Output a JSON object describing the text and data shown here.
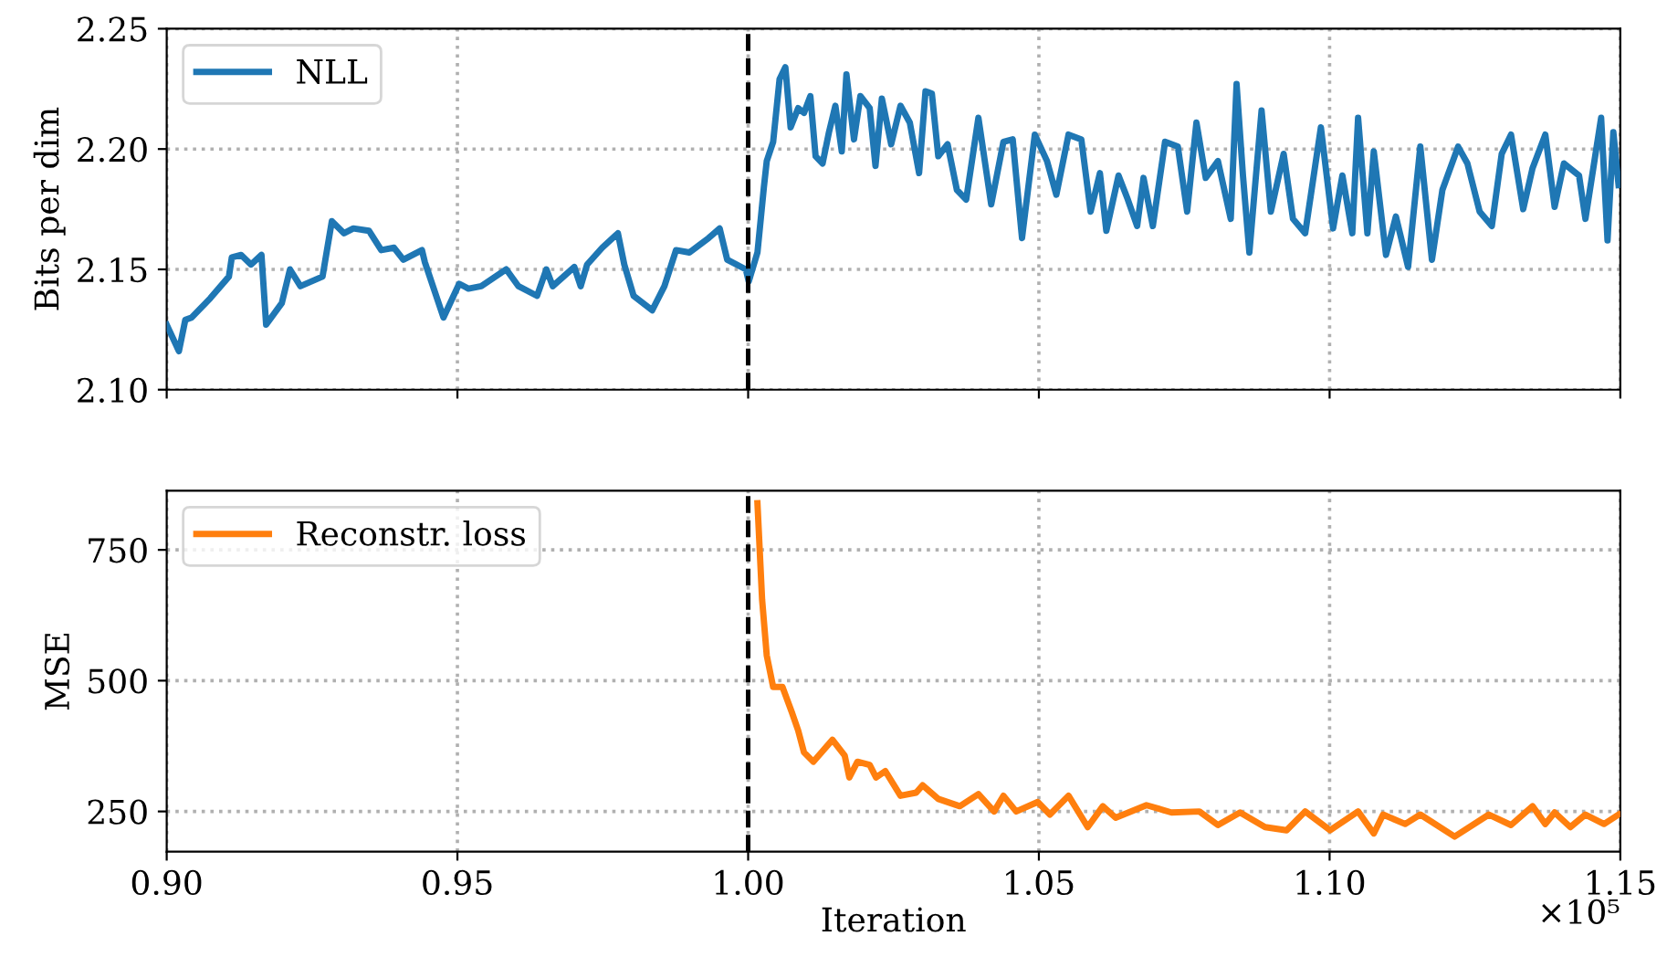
{
  "chart_data": [
    {
      "type": "line",
      "ylabel": "Bits per dim",
      "xlim": [
        0.9,
        1.15
      ],
      "ylim": [
        2.1,
        2.25
      ],
      "xticks": [
        {
          "value": 0.9,
          "label": null
        },
        {
          "value": 0.95,
          "label": null
        },
        {
          "value": 1.0,
          "label": null
        },
        {
          "value": 1.05,
          "label": null
        },
        {
          "value": 1.1,
          "label": null
        },
        {
          "value": 1.15,
          "label": null
        }
      ],
      "yticks": [
        {
          "value": 2.1,
          "label": "2.10"
        },
        {
          "value": 2.15,
          "label": "2.15"
        },
        {
          "value": 2.2,
          "label": "2.20"
        },
        {
          "value": 2.25,
          "label": "2.25"
        }
      ],
      "tick_labels": "y",
      "grid": true,
      "legend": "top left",
      "line_style": "solid",
      "marker": "none",
      "ref_lines": [
        {
          "axis": "x",
          "value": 1.0,
          "color": "#000000",
          "line_style": "dashed"
        }
      ],
      "series": [
        {
          "name": "NLL",
          "color": "#1f77b4",
          "x": [
            0.9,
            0.9021,
            0.9032,
            0.9043,
            0.9075,
            0.9107,
            0.9112,
            0.9128,
            0.9145,
            0.9163,
            0.9171,
            0.9198,
            0.9212,
            0.923,
            0.9268,
            0.9284,
            0.9305,
            0.9321,
            0.9348,
            0.9369,
            0.9391,
            0.9407,
            0.9439,
            0.9444,
            0.9476,
            0.9503,
            0.9519,
            0.9541,
            0.9584,
            0.9605,
            0.9637,
            0.9653,
            0.9664,
            0.9701,
            0.9712,
            0.9723,
            0.9749,
            0.9776,
            0.9787,
            0.9803,
            0.9835,
            0.9856,
            0.9876,
            0.9899,
            0.9932,
            0.9951,
            0.9964,
            0.9996,
            1.0001,
            1.0016,
            1.0027,
            1.0032,
            1.0043,
            1.0054,
            1.0064,
            1.0073,
            1.0086,
            1.0096,
            1.0107,
            1.0116,
            1.0128,
            1.0139,
            1.015,
            1.0161,
            1.0169,
            1.0182,
            1.0193,
            1.0209,
            1.0219,
            1.023,
            1.0246,
            1.0262,
            1.0278,
            1.0294,
            1.0305,
            1.0316,
            1.0327,
            1.0343,
            1.0359,
            1.0375,
            1.0396,
            1.0418,
            1.0439,
            1.0455,
            1.0471,
            1.0493,
            1.0514,
            1.053,
            1.0551,
            1.0573,
            1.0589,
            1.0605,
            1.0616,
            1.0637,
            1.0653,
            1.0669,
            1.068,
            1.0696,
            1.0717,
            1.0739,
            1.0755,
            1.0771,
            1.0787,
            1.0808,
            1.083,
            1.084,
            1.0851,
            1.0862,
            1.0883,
            1.0899,
            1.0921,
            1.0937,
            1.0958,
            1.0985,
            1.1006,
            1.1022,
            1.1039,
            1.1049,
            1.1065,
            1.1076,
            1.1097,
            1.1114,
            1.1135,
            1.1156,
            1.1176,
            1.1194,
            1.1221,
            1.1237,
            1.1258,
            1.1279,
            1.1296,
            1.1312,
            1.1333,
            1.1349,
            1.1371,
            1.1387,
            1.1403,
            1.1429,
            1.144,
            1.1467,
            1.1478,
            1.1488,
            1.1497
          ],
          "values": [
            2.127,
            2.116,
            2.129,
            2.13,
            2.138,
            2.147,
            2.155,
            2.156,
            2.152,
            2.156,
            2.127,
            2.136,
            2.15,
            2.143,
            2.147,
            2.17,
            2.165,
            2.167,
            2.166,
            2.158,
            2.159,
            2.154,
            2.158,
            2.153,
            2.13,
            2.144,
            2.142,
            2.143,
            2.15,
            2.143,
            2.139,
            2.15,
            2.143,
            2.151,
            2.143,
            2.152,
            2.159,
            2.165,
            2.152,
            2.139,
            2.133,
            2.143,
            2.158,
            2.157,
            2.163,
            2.167,
            2.154,
            2.15,
            2.145,
            2.157,
            2.184,
            2.195,
            2.203,
            2.229,
            2.234,
            2.209,
            2.217,
            2.215,
            2.222,
            2.197,
            2.194,
            2.207,
            2.218,
            2.199,
            2.231,
            2.204,
            2.222,
            2.217,
            2.193,
            2.221,
            2.202,
            2.218,
            2.211,
            2.19,
            2.224,
            2.223,
            2.197,
            2.202,
            2.183,
            2.179,
            2.213,
            2.177,
            2.203,
            2.204,
            2.163,
            2.206,
            2.195,
            2.181,
            2.206,
            2.204,
            2.174,
            2.19,
            2.166,
            2.189,
            2.179,
            2.168,
            2.188,
            2.168,
            2.203,
            2.201,
            2.174,
            2.211,
            2.188,
            2.195,
            2.171,
            2.227,
            2.189,
            2.157,
            2.216,
            2.174,
            2.198,
            2.171,
            2.165,
            2.209,
            2.167,
            2.189,
            2.165,
            2.213,
            2.165,
            2.199,
            2.156,
            2.172,
            2.151,
            2.201,
            2.154,
            2.183,
            2.201,
            2.194,
            2.174,
            2.168,
            2.198,
            2.206,
            2.175,
            2.192,
            2.206,
            2.176,
            2.194,
            2.189,
            2.171,
            2.213,
            2.162,
            2.207,
            2.185
          ]
        }
      ]
    },
    {
      "type": "line",
      "ylabel": "MSE",
      "xlabel": "Iteration",
      "xlim": [
        0.9,
        1.15
      ],
      "ylim": [
        173,
        863
      ],
      "xticks": [
        {
          "value": 0.9,
          "label": "0.90"
        },
        {
          "value": 0.95,
          "label": "0.95"
        },
        {
          "value": 1.0,
          "label": "1.00"
        },
        {
          "value": 1.05,
          "label": "1.05"
        },
        {
          "value": 1.1,
          "label": "1.10"
        },
        {
          "value": 1.15,
          "label": "1.15"
        }
      ],
      "yticks": [
        250,
        500,
        750
      ],
      "grid": true,
      "legend": "top left",
      "line_style": "solid",
      "marker": "none",
      "annotations": [
        "×10⁵"
      ],
      "ref_lines": [
        {
          "axis": "x",
          "value": 1.0,
          "color": "#000000",
          "line_style": "dashed"
        }
      ],
      "series": [
        {
          "name": "Reconstr. loss",
          "color": "#ff7f0e",
          "x": [
            1.0016,
            1.0024,
            1.0032,
            1.0043,
            1.0059,
            1.0075,
            1.0086,
            1.0096,
            1.0112,
            1.0145,
            1.0166,
            1.0174,
            1.0188,
            1.0209,
            1.022,
            1.0236,
            1.0262,
            1.0289,
            1.03,
            1.0327,
            1.0364,
            1.0396,
            1.0423,
            1.0439,
            1.0461,
            1.0498,
            1.0519,
            1.0551,
            1.0584,
            1.061,
            1.0632,
            1.0685,
            1.0728,
            1.0776,
            1.0808,
            1.0846,
            1.0889,
            1.0926,
            1.0958,
            1.1001,
            1.1049,
            1.1076,
            1.1092,
            1.113,
            1.1156,
            1.1215,
            1.1274,
            1.1312,
            1.1349,
            1.1371,
            1.1387,
            1.1414,
            1.144,
            1.1472,
            1.1497
          ],
          "values": [
            839,
            655,
            548,
            488,
            488,
            440,
            405,
            363,
            345,
            387,
            357,
            315,
            345,
            339,
            315,
            327,
            280,
            286,
            300,
            274,
            260,
            283,
            250,
            280,
            250,
            268,
            244,
            280,
            220,
            260,
            238,
            262,
            248,
            250,
            224,
            248,
            220,
            214,
            250,
            214,
            250,
            208,
            244,
            226,
            244,
            202,
            244,
            224,
            260,
            226,
            248,
            220,
            244,
            226,
            244
          ]
        }
      ]
    }
  ]
}
